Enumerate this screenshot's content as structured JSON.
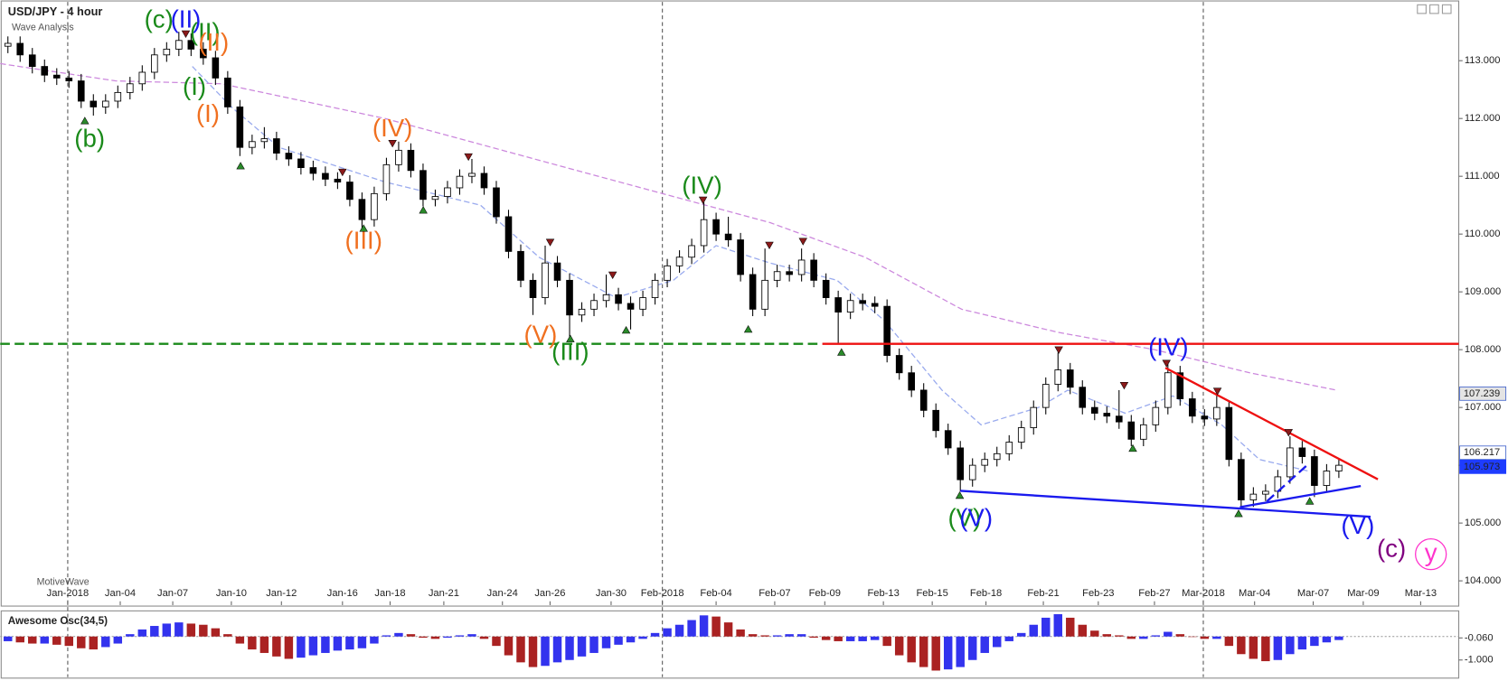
{
  "header": {
    "title": "USD/JPY - 4 hour",
    "subtitle": "Wave Analysis",
    "footer": "MotiveWave"
  },
  "chart_data": [
    {
      "type": "candlestick",
      "open": [
        113.25,
        113.3,
        113.1,
        112.9,
        112.75,
        112.7,
        112.65,
        112.3,
        112.2,
        112.3,
        112.45,
        112.6,
        112.8,
        113.1,
        113.2,
        113.35,
        113.2,
        113.05,
        112.7,
        112.2,
        111.5,
        111.6,
        111.65,
        111.4,
        111.3,
        111.15,
        111.05,
        110.95,
        110.9,
        110.6,
        110.25,
        110.7,
        111.2,
        111.45,
        111.1,
        110.6,
        110.65,
        110.8,
        111.0,
        111.05,
        110.8,
        110.3,
        109.7,
        109.2,
        108.9,
        109.5,
        109.2,
        108.6,
        108.7,
        108.85,
        108.95,
        108.8,
        108.7,
        108.9,
        109.2,
        109.45,
        109.6,
        109.8,
        110.25,
        110.0,
        109.9,
        109.3,
        108.7,
        109.2,
        109.35,
        109.3,
        109.55,
        109.2,
        108.9,
        108.65,
        108.85,
        108.8,
        108.75,
        107.9,
        107.6,
        107.3,
        106.95,
        106.6,
        106.3,
        105.75,
        106.0,
        106.1,
        106.2,
        106.4,
        106.65,
        107.0,
        107.4,
        107.65,
        107.35,
        107.0,
        106.9,
        106.85,
        106.75,
        106.45,
        106.7,
        107.0,
        107.6,
        107.15,
        106.85,
        106.8,
        107.0,
        106.1,
        105.4,
        105.5,
        105.55,
        105.8,
        106.3,
        106.15,
        105.65,
        105.9
      ],
      "high": [
        113.42,
        113.42,
        113.22,
        113.02,
        112.87,
        112.82,
        112.77,
        112.42,
        112.42,
        112.57,
        112.72,
        112.92,
        113.22,
        113.32,
        113.5,
        113.47,
        113.32,
        113.17,
        112.82,
        112.32,
        111.72,
        111.85,
        111.77,
        111.52,
        111.42,
        111.27,
        111.17,
        111.07,
        111.02,
        110.72,
        110.82,
        111.32,
        111.6,
        111.57,
        111.22,
        110.77,
        110.92,
        111.12,
        111.3,
        111.17,
        110.92,
        110.42,
        109.82,
        109.32,
        109.8,
        109.62,
        109.32,
        108.82,
        108.97,
        109.3,
        109.07,
        108.92,
        109.02,
        109.32,
        109.57,
        109.72,
        109.92,
        110.55,
        110.37,
        110.3,
        110.02,
        109.42,
        109.75,
        109.47,
        109.47,
        109.75,
        109.67,
        109.32,
        109.02,
        108.97,
        108.97,
        108.92,
        108.87,
        108.02,
        107.72,
        107.42,
        107.07,
        106.72,
        106.42,
        106.12,
        106.22,
        106.32,
        106.52,
        106.77,
        107.12,
        107.52,
        107.95,
        107.77,
        107.47,
        107.12,
        107.02,
        107.3,
        106.87,
        106.82,
        107.12,
        107.75,
        107.72,
        107.27,
        106.97,
        107.25,
        107.12,
        106.22,
        105.62,
        105.67,
        105.92,
        106.5,
        106.42,
        106.27,
        106.02,
        106.12
      ],
      "low": [
        113.13,
        112.98,
        112.78,
        112.63,
        112.58,
        112.53,
        112.18,
        112.05,
        112.08,
        112.18,
        112.33,
        112.48,
        112.68,
        112.98,
        113.08,
        113.08,
        112.93,
        112.58,
        112.08,
        111.35,
        111.38,
        111.48,
        111.28,
        111.18,
        111.03,
        110.93,
        110.83,
        110.78,
        110.48,
        110.1,
        110.13,
        110.58,
        111.08,
        110.98,
        110.48,
        110.48,
        110.53,
        110.68,
        110.88,
        110.68,
        110.18,
        109.58,
        109.08,
        108.6,
        108.78,
        109.08,
        108.2,
        108.48,
        108.58,
        108.73,
        108.68,
        108.35,
        108.58,
        108.78,
        109.08,
        109.33,
        109.48,
        109.68,
        109.88,
        109.78,
        109.18,
        108.58,
        108.58,
        109.08,
        109.18,
        109.18,
        109.08,
        108.78,
        108.1,
        108.53,
        108.68,
        108.63,
        107.78,
        107.48,
        107.18,
        106.83,
        106.48,
        106.18,
        105.55,
        105.63,
        105.88,
        105.98,
        106.08,
        106.28,
        106.53,
        106.88,
        107.28,
        107.23,
        106.88,
        106.78,
        106.73,
        106.63,
        106.33,
        106.33,
        106.58,
        106.88,
        107.03,
        106.73,
        106.68,
        106.68,
        105.98,
        105.25,
        105.28,
        105.38,
        105.43,
        105.68,
        106.03,
        105.45,
        105.53,
        105.78
      ],
      "close": [
        113.3,
        113.1,
        112.9,
        112.75,
        112.7,
        112.65,
        112.3,
        112.2,
        112.3,
        112.45,
        112.6,
        112.8,
        113.1,
        113.2,
        113.35,
        113.2,
        113.05,
        112.7,
        112.2,
        111.5,
        111.6,
        111.65,
        111.4,
        111.3,
        111.15,
        111.05,
        110.95,
        110.9,
        110.6,
        110.25,
        110.7,
        111.2,
        111.45,
        111.1,
        110.6,
        110.65,
        110.8,
        111.0,
        111.05,
        110.8,
        110.3,
        109.7,
        109.2,
        108.9,
        109.5,
        109.2,
        108.6,
        108.7,
        108.85,
        108.95,
        108.8,
        108.7,
        108.9,
        109.2,
        109.45,
        109.6,
        109.8,
        110.25,
        110.0,
        109.9,
        109.3,
        108.7,
        109.2,
        109.35,
        109.3,
        109.55,
        109.2,
        108.9,
        108.65,
        108.85,
        108.8,
        108.75,
        107.9,
        107.6,
        107.3,
        106.95,
        106.6,
        106.3,
        105.75,
        106.0,
        106.1,
        106.2,
        106.4,
        106.65,
        107.0,
        107.4,
        107.65,
        107.35,
        107.0,
        106.9,
        106.85,
        106.75,
        106.45,
        106.7,
        107.0,
        107.6,
        107.15,
        106.85,
        106.8,
        107.0,
        106.1,
        105.4,
        105.5,
        105.55,
        105.8,
        106.3,
        106.15,
        105.65,
        105.9,
        106.0
      ],
      "up_color": "#ffffff",
      "down_color": "#000000",
      "xlim": [
        -0.63,
        118.82
      ],
      "ylim": [
        103.58,
        114.05
      ],
      "xticks": [
        {
          "value": 4.9,
          "label": "Jan-2018"
        },
        {
          "value": 9.2,
          "label": "Jan-04"
        },
        {
          "value": 13.5,
          "label": "Jan-07"
        },
        {
          "value": 18.3,
          "label": "Jan-10"
        },
        {
          "value": 22.4,
          "label": "Jan-12"
        },
        {
          "value": 27.4,
          "label": "Jan-16"
        },
        {
          "value": 31.3,
          "label": "Jan-18"
        },
        {
          "value": 35.7,
          "label": "Jan-21"
        },
        {
          "value": 40.5,
          "label": "Jan-24"
        },
        {
          "value": 44.4,
          "label": "Jan-26"
        },
        {
          "value": 49.4,
          "label": "Jan-30"
        },
        {
          "value": 53.6,
          "label": "Feb-2018"
        },
        {
          "value": 58.0,
          "label": "Feb-04"
        },
        {
          "value": 62.8,
          "label": "Feb-07"
        },
        {
          "value": 66.9,
          "label": "Feb-09"
        },
        {
          "value": 71.7,
          "label": "Feb-13"
        },
        {
          "value": 75.7,
          "label": "Feb-15"
        },
        {
          "value": 80.1,
          "label": "Feb-18"
        },
        {
          "value": 84.8,
          "label": "Feb-21"
        },
        {
          "value": 89.3,
          "label": "Feb-23"
        },
        {
          "value": 93.9,
          "label": "Feb-27"
        },
        {
          "value": 97.9,
          "label": "Mar-2018"
        },
        {
          "value": 102.1,
          "label": "Mar-04"
        },
        {
          "value": 106.9,
          "label": "Mar-07"
        },
        {
          "value": 111.0,
          "label": "Mar-09"
        },
        {
          "value": 115.7,
          "label": "Mar-13"
        }
      ],
      "yticks": [
        {
          "value": 104,
          "label": "104.000"
        },
        {
          "value": 105,
          "label": "105.000"
        },
        {
          "value": 106,
          "label": "106.000"
        },
        {
          "value": 107,
          "label": "107.000"
        },
        {
          "value": 108,
          "label": "108.000"
        },
        {
          "value": 109,
          "label": "109.000"
        },
        {
          "value": 110,
          "label": "110.000"
        },
        {
          "value": 111,
          "label": "111.000"
        },
        {
          "value": 112,
          "label": "112.000"
        },
        {
          "value": 113,
          "label": "113.000"
        }
      ],
      "moving_averages": [
        {
          "color": "#cc88dd",
          "x": [
            -0.63,
            8.8,
            17.5,
            30.9,
            46.6,
            62.4,
            70.2,
            78.1,
            86.0,
            93.9,
            101.7,
            108.8
          ],
          "values": [
            112.95,
            112.65,
            112.6,
            112.0,
            111.1,
            110.2,
            109.6,
            108.7,
            108.3,
            108.0,
            107.6,
            107.3
          ]
        },
        {
          "color": "#99aaee",
          "x": [
            15.1,
            18.3,
            22.2,
            30.9,
            38.7,
            43.5,
            49.8,
            54.5,
            58.0,
            62.4,
            67.9,
            71.8,
            76.5,
            79.7,
            84.4,
            86.8,
            91.5,
            95.4,
            99.4,
            102.5,
            106.5
          ],
          "values": [
            112.9,
            112.2,
            111.5,
            110.9,
            110.5,
            109.6,
            108.9,
            109.2,
            109.8,
            109.5,
            109.2,
            108.5,
            107.3,
            106.7,
            107.0,
            107.3,
            106.9,
            107.2,
            106.7,
            106.1,
            105.9
          ]
        }
      ],
      "lines": [
        {
          "color": "#1a8a1a",
          "dashed": true,
          "x": [
            -0.63,
            66.7
          ],
          "y": [
            108.1,
            108.1
          ]
        },
        {
          "color": "#ee1111",
          "dashed": false,
          "x": [
            66.7,
            118.82
          ],
          "y": [
            108.1,
            108.1
          ]
        },
        {
          "color": "#ee1111",
          "dashed": false,
          "x": [
            94.8,
            112.2
          ],
          "y": [
            107.685,
            105.757
          ]
        },
        {
          "color": "#1a1aee",
          "dashed": false,
          "x": [
            78.0,
            111.6
          ],
          "y": [
            105.558,
            105.109
          ]
        },
        {
          "color": "#1a1aee",
          "dashed": false,
          "x": [
            100.9,
            110.8
          ],
          "y": [
            105.275,
            105.64
          ]
        },
        {
          "color": "#1a1aee",
          "dashed": true,
          "x": [
            103.1,
            106.6
          ],
          "y": [
            105.375,
            106.04
          ]
        }
      ],
      "price_markers": [
        {
          "value": 107.239,
          "color": "#e4e4e4"
        },
        {
          "value": 106.217,
          "color": "#ffffff"
        },
        {
          "value": 105.973,
          "color": "#1e3cff"
        }
      ],
      "annotations": [
        {
          "text": "(b)",
          "color": "#1a8a1a"
        },
        {
          "text": "(c)",
          "color": "#1a8a1a"
        },
        {
          "text": "(II)",
          "color": "#1a1aee"
        },
        {
          "text": "(II)",
          "color": "#1a8a1a"
        },
        {
          "text": "(II)",
          "color": "#f07020"
        },
        {
          "text": "(I)",
          "color": "#1a8a1a"
        },
        {
          "text": "(I)",
          "color": "#f07020"
        },
        {
          "text": "(IV)",
          "color": "#f07020"
        },
        {
          "text": "(III)",
          "color": "#f07020"
        },
        {
          "text": "(V)",
          "color": "#f07020"
        },
        {
          "text": "(III)",
          "color": "#1a8a1a"
        },
        {
          "text": "(IV)",
          "color": "#1a8a1a"
        },
        {
          "text": "(V)",
          "color": "#1a8a1a"
        },
        {
          "text": "(V)",
          "color": "#1a1aee"
        },
        {
          "text": "(IV)",
          "color": "#1a1aee"
        },
        {
          "text": "(V)",
          "color": "#1a1aee"
        },
        {
          "text": "(c)",
          "color": "#800080"
        },
        {
          "text": "y",
          "color": "#ff33cc",
          "circled": true
        }
      ]
    },
    {
      "type": "bar",
      "title": "Awesome Osc(34,5)",
      "values": [
        -0.2,
        -0.25,
        -0.3,
        -0.3,
        -0.35,
        -0.4,
        -0.5,
        -0.55,
        -0.45,
        -0.3,
        0.1,
        0.3,
        0.45,
        0.55,
        0.6,
        0.55,
        0.5,
        0.35,
        0.1,
        -0.3,
        -0.55,
        -0.7,
        -0.85,
        -0.95,
        -0.9,
        -0.8,
        -0.7,
        -0.6,
        -0.55,
        -0.5,
        -0.3,
        0.05,
        0.15,
        0.1,
        -0.05,
        -0.1,
        -0.05,
        0.05,
        0.1,
        -0.1,
        -0.4,
        -0.8,
        -1.1,
        -1.3,
        -1.25,
        -1.1,
        -1.0,
        -0.85,
        -0.7,
        -0.5,
        -0.35,
        -0.25,
        -0.1,
        0.15,
        0.35,
        0.5,
        0.7,
        0.9,
        0.85,
        0.6,
        0.3,
        0.1,
        0.05,
        0.05,
        0.1,
        0.1,
        -0.05,
        -0.15,
        -0.2,
        -0.2,
        -0.2,
        -0.15,
        -0.4,
        -0.8,
        -1.1,
        -1.3,
        -1.45,
        -1.4,
        -1.3,
        -1.0,
        -0.7,
        -0.45,
        -0.2,
        0.15,
        0.5,
        0.8,
        0.95,
        0.8,
        0.5,
        0.25,
        0.1,
        0.05,
        -0.1,
        -0.1,
        0.05,
        0.2,
        0.1,
        0.0,
        -0.1,
        -0.1,
        -0.4,
        -0.75,
        -0.95,
        -1.05,
        -1.0,
        -0.75,
        -0.55,
        -0.4,
        -0.25,
        -0.15
      ],
      "up_color": "#3333ee",
      "down_color": "#aa2222",
      "ylim": [
        -1.73,
        1.05
      ],
      "yticks": [
        {
          "value": -0.06,
          "label": "-0.060"
        },
        {
          "value": -1,
          "label": "-1.000"
        }
      ]
    }
  ]
}
